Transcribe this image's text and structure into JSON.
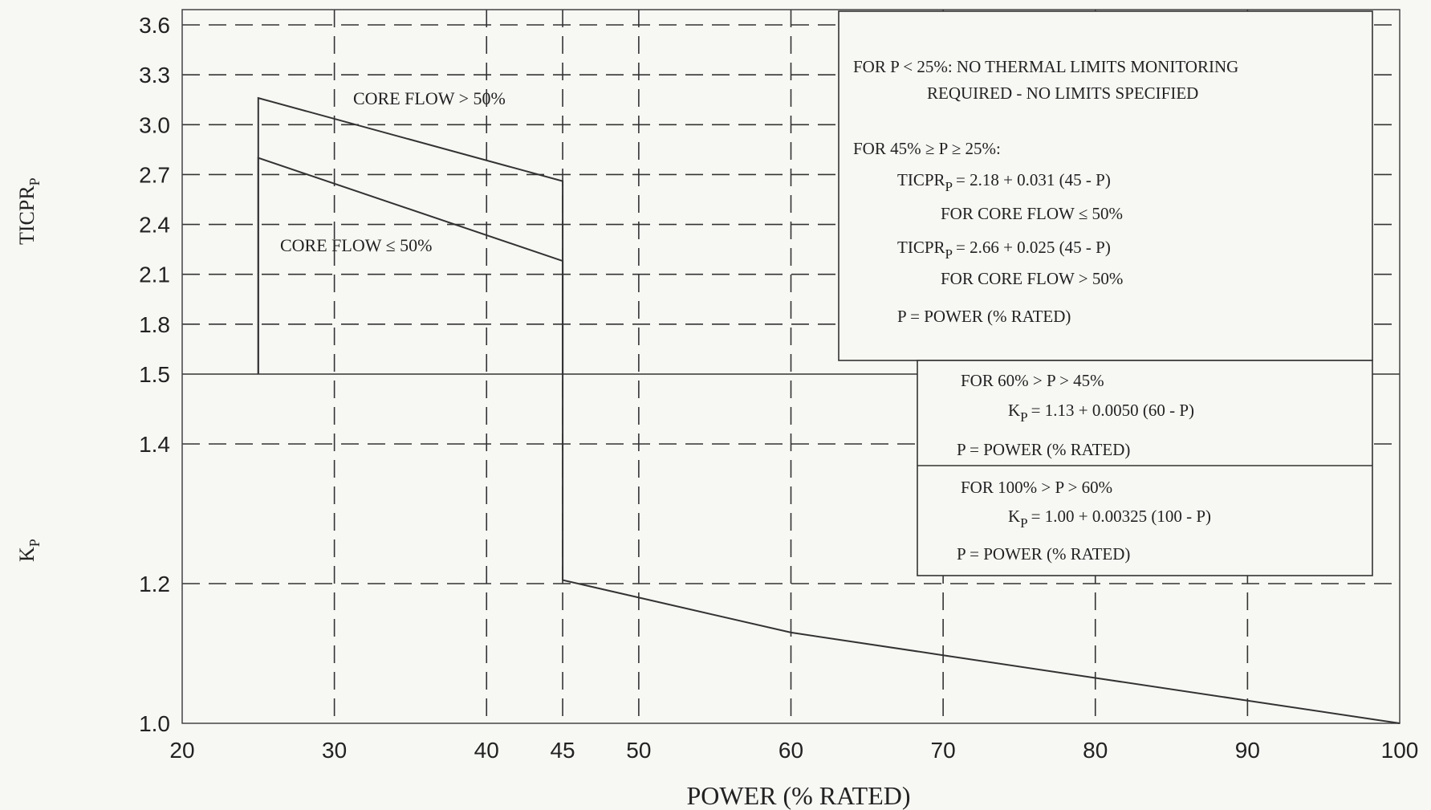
{
  "chart_data": {
    "type": "line",
    "xlabel": "POWER (% RATED)",
    "x_ticks": [
      20,
      30,
      40,
      45,
      50,
      60,
      70,
      80,
      90,
      100
    ],
    "xlim": [
      20,
      100
    ],
    "upper_axis": {
      "label_main": "TICPR",
      "label_sub": "P",
      "ticks": [
        1.5,
        1.8,
        2.1,
        2.4,
        2.7,
        3.0,
        3.3,
        3.6
      ],
      "tick_labels": [
        "1.5",
        "1.8",
        "2.1",
        "2.4",
        "2.7",
        "3.0",
        "3.3",
        "3.6"
      ],
      "ylim": [
        1.5,
        3.6
      ]
    },
    "lower_axis": {
      "label_main": "K",
      "label_sub": "P",
      "ticks": [
        1.0,
        1.2,
        1.4
      ],
      "tick_labels": [
        "1.0",
        "1.2",
        "1.4"
      ],
      "ylim": [
        1.0,
        1.5
      ]
    },
    "series": [
      {
        "name": "CORE FLOW > 50%",
        "axis": "upper",
        "x": [
          25,
          25,
          45,
          45
        ],
        "y": [
          1.5,
          3.16,
          2.66,
          1.5
        ]
      },
      {
        "name": "CORE FLOW ≤ 50%",
        "axis": "upper",
        "x": [
          25,
          25,
          45,
          45
        ],
        "y": [
          1.5,
          2.8,
          2.18,
          1.5
        ]
      },
      {
        "name": "",
        "axis": "lower",
        "x": [
          45,
          45,
          60,
          70,
          80,
          90,
          100
        ],
        "y": [
          1.5,
          1.205,
          1.13,
          1.0975,
          1.065,
          1.0325,
          1.0
        ]
      }
    ],
    "grid": true,
    "annotations": {
      "box1": [
        "FOR P < 25%: NO THERMAL LIMITS MONITORING",
        "REQUIRED - NO LIMITS SPECIFIED",
        "FOR 45% ≥ P ≥ 25%:",
        "= 2.18 + 0.031 (45 - P)",
        "FOR CORE FLOW ≤ 50%",
        "= 2.66 + 0.025 (45 - P)",
        "FOR CORE FLOW > 50%",
        "P = POWER (% RATED)"
      ],
      "box2": [
        "FOR 60% > P > 45%",
        "= 1.13 + 0.0050 (60 - P)",
        "P = POWER (% RATED)"
      ],
      "box3": [
        "FOR 100% > P > 60%",
        "= 1.00 + 0.00325 (100 - P)",
        "P = POWER (% RATED)"
      ],
      "formula_prefixes": {
        "ticpr": "TICPR",
        "k": "K",
        "sub": "P"
      }
    }
  }
}
